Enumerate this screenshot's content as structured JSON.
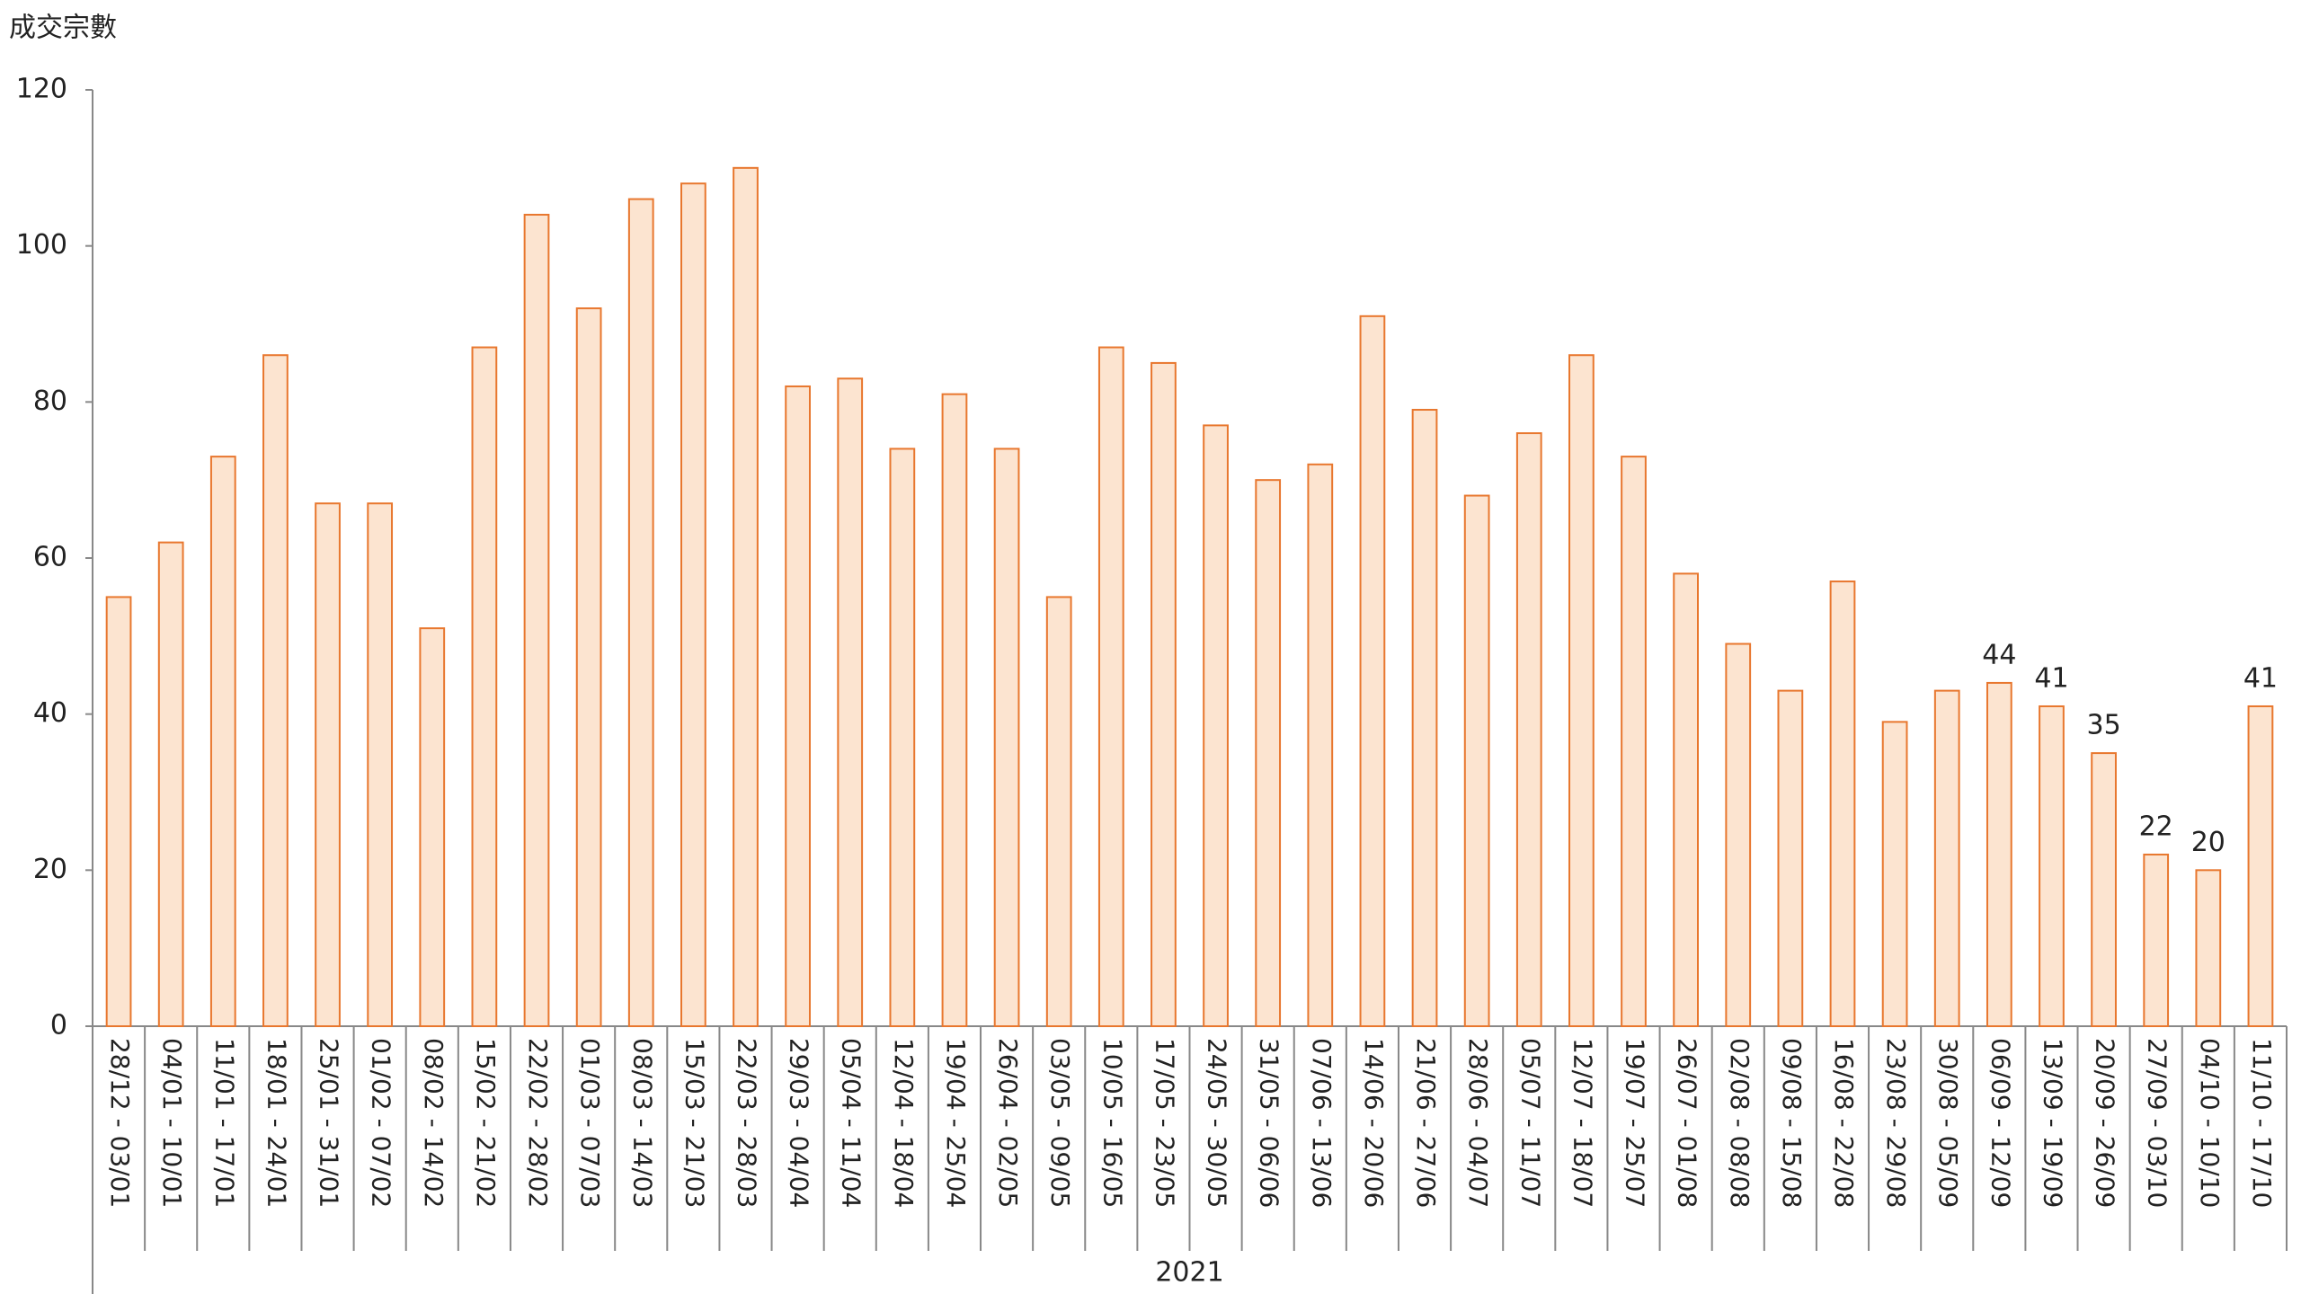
{
  "chart_data": {
    "type": "bar",
    "y_axis_label": "成交宗數",
    "group_label": "2021",
    "categories": [
      "28/12 - 03/01",
      "04/01 - 10/01",
      "11/01 - 17/01",
      "18/01 - 24/01",
      "25/01 - 31/01",
      "01/02 - 07/02",
      "08/02 - 14/02",
      "15/02 - 21/02",
      "22/02 - 28/02",
      "01/03 - 07/03",
      "08/03 - 14/03",
      "15/03 - 21/03",
      "22/03 - 28/03",
      "29/03 - 04/04",
      "05/04 - 11/04",
      "12/04 - 18/04",
      "19/04 - 25/04",
      "26/04 - 02/05",
      "03/05 - 09/05",
      "10/05 - 16/05",
      "17/05 - 23/05",
      "24/05 - 30/05",
      "31/05 - 06/06",
      "07/06 - 13/06",
      "14/06 - 20/06",
      "21/06 - 27/06",
      "28/06 - 04/07",
      "05/07 - 11/07",
      "12/07 - 18/07",
      "19/07 - 25/07",
      "26/07 - 01/08",
      "02/08 - 08/08",
      "09/08 - 15/08",
      "16/08 - 22/08",
      "23/08 - 29/08",
      "30/08 - 05/09",
      "06/09 - 12/09",
      "13/09 - 19/09",
      "20/09 - 26/09",
      "27/09 - 03/10",
      "04/10 - 10/10",
      "11/10 - 17/10"
    ],
    "values": [
      55,
      62,
      73,
      86,
      67,
      67,
      51,
      87,
      104,
      92,
      106,
      108,
      110,
      82,
      83,
      74,
      81,
      74,
      55,
      87,
      85,
      77,
      70,
      72,
      91,
      79,
      68,
      76,
      86,
      73,
      58,
      49,
      43,
      57,
      39,
      43,
      44,
      41,
      35,
      22,
      20,
      41
    ],
    "labeled": [
      false,
      false,
      false,
      false,
      false,
      false,
      false,
      false,
      false,
      false,
      false,
      false,
      false,
      false,
      false,
      false,
      false,
      false,
      false,
      false,
      false,
      false,
      false,
      false,
      false,
      false,
      false,
      false,
      false,
      false,
      false,
      false,
      false,
      false,
      false,
      false,
      true,
      true,
      true,
      true,
      true,
      true
    ],
    "color": "#fce4d0",
    "edge_color": "#e8772e",
    "ylim": [
      0,
      120
    ],
    "yticks": [
      0,
      20,
      40,
      60,
      80,
      100,
      120
    ],
    "grid": false
  }
}
